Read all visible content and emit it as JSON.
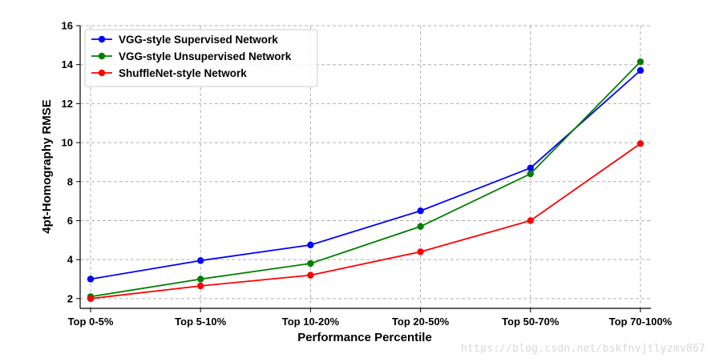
{
  "chart_data": {
    "type": "line",
    "categories": [
      "Top 0-5%",
      "Top 5-10%",
      "Top 10-20%",
      "Top 20-50%",
      "Top 50-70%",
      "Top 70-100%"
    ],
    "series": [
      {
        "name": "VGG-style Supervised Network",
        "color": "#0000ff",
        "values": [
          3.0,
          3.95,
          4.75,
          6.5,
          8.7,
          13.7
        ]
      },
      {
        "name": "VGG-style Unsupervised Network",
        "color": "#008000",
        "values": [
          2.1,
          3.0,
          3.8,
          5.7,
          8.4,
          14.15
        ]
      },
      {
        "name": "ShuffleNet-style Network",
        "color": "#ff0000",
        "values": [
          2.0,
          2.65,
          3.2,
          4.4,
          6.0,
          9.95
        ]
      }
    ],
    "xlabel": "Performance Percentile",
    "ylabel": "4pt-Homography RMSE",
    "ylim": [
      1.5,
      16
    ],
    "yticks": [
      2,
      4,
      6,
      8,
      10,
      12,
      14,
      16
    ],
    "grid": true,
    "legend_position": "top-left"
  },
  "watermark": "https://blog.csdn.net/bskfnvjtlyzmv867"
}
